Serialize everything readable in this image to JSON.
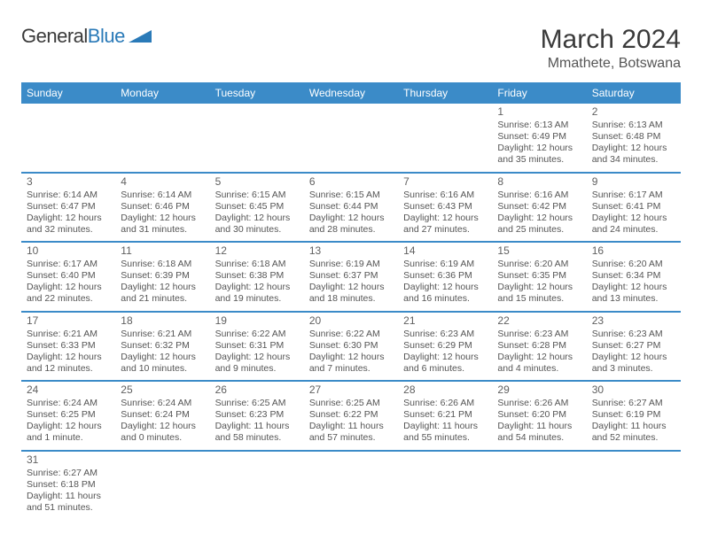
{
  "logo": {
    "text1": "General",
    "text2": "Blue"
  },
  "title": "March 2024",
  "location": "Mmathete, Botswana",
  "colors": {
    "header_bg": "#3b8bc8",
    "header_text": "#ffffff",
    "row_border": "#3b8bc8",
    "text": "#555555",
    "daynum": "#606060",
    "logo_blue": "#2a7ab8",
    "page_bg": "#ffffff"
  },
  "daynames": [
    "Sunday",
    "Monday",
    "Tuesday",
    "Wednesday",
    "Thursday",
    "Friday",
    "Saturday"
  ],
  "weeks": [
    [
      null,
      null,
      null,
      null,
      null,
      {
        "n": "1",
        "sr": "Sunrise: 6:13 AM",
        "ss": "Sunset: 6:49 PM",
        "dl": "Daylight: 12 hours and 35 minutes."
      },
      {
        "n": "2",
        "sr": "Sunrise: 6:13 AM",
        "ss": "Sunset: 6:48 PM",
        "dl": "Daylight: 12 hours and 34 minutes."
      }
    ],
    [
      {
        "n": "3",
        "sr": "Sunrise: 6:14 AM",
        "ss": "Sunset: 6:47 PM",
        "dl": "Daylight: 12 hours and 32 minutes."
      },
      {
        "n": "4",
        "sr": "Sunrise: 6:14 AM",
        "ss": "Sunset: 6:46 PM",
        "dl": "Daylight: 12 hours and 31 minutes."
      },
      {
        "n": "5",
        "sr": "Sunrise: 6:15 AM",
        "ss": "Sunset: 6:45 PM",
        "dl": "Daylight: 12 hours and 30 minutes."
      },
      {
        "n": "6",
        "sr": "Sunrise: 6:15 AM",
        "ss": "Sunset: 6:44 PM",
        "dl": "Daylight: 12 hours and 28 minutes."
      },
      {
        "n": "7",
        "sr": "Sunrise: 6:16 AM",
        "ss": "Sunset: 6:43 PM",
        "dl": "Daylight: 12 hours and 27 minutes."
      },
      {
        "n": "8",
        "sr": "Sunrise: 6:16 AM",
        "ss": "Sunset: 6:42 PM",
        "dl": "Daylight: 12 hours and 25 minutes."
      },
      {
        "n": "9",
        "sr": "Sunrise: 6:17 AM",
        "ss": "Sunset: 6:41 PM",
        "dl": "Daylight: 12 hours and 24 minutes."
      }
    ],
    [
      {
        "n": "10",
        "sr": "Sunrise: 6:17 AM",
        "ss": "Sunset: 6:40 PM",
        "dl": "Daylight: 12 hours and 22 minutes."
      },
      {
        "n": "11",
        "sr": "Sunrise: 6:18 AM",
        "ss": "Sunset: 6:39 PM",
        "dl": "Daylight: 12 hours and 21 minutes."
      },
      {
        "n": "12",
        "sr": "Sunrise: 6:18 AM",
        "ss": "Sunset: 6:38 PM",
        "dl": "Daylight: 12 hours and 19 minutes."
      },
      {
        "n": "13",
        "sr": "Sunrise: 6:19 AM",
        "ss": "Sunset: 6:37 PM",
        "dl": "Daylight: 12 hours and 18 minutes."
      },
      {
        "n": "14",
        "sr": "Sunrise: 6:19 AM",
        "ss": "Sunset: 6:36 PM",
        "dl": "Daylight: 12 hours and 16 minutes."
      },
      {
        "n": "15",
        "sr": "Sunrise: 6:20 AM",
        "ss": "Sunset: 6:35 PM",
        "dl": "Daylight: 12 hours and 15 minutes."
      },
      {
        "n": "16",
        "sr": "Sunrise: 6:20 AM",
        "ss": "Sunset: 6:34 PM",
        "dl": "Daylight: 12 hours and 13 minutes."
      }
    ],
    [
      {
        "n": "17",
        "sr": "Sunrise: 6:21 AM",
        "ss": "Sunset: 6:33 PM",
        "dl": "Daylight: 12 hours and 12 minutes."
      },
      {
        "n": "18",
        "sr": "Sunrise: 6:21 AM",
        "ss": "Sunset: 6:32 PM",
        "dl": "Daylight: 12 hours and 10 minutes."
      },
      {
        "n": "19",
        "sr": "Sunrise: 6:22 AM",
        "ss": "Sunset: 6:31 PM",
        "dl": "Daylight: 12 hours and 9 minutes."
      },
      {
        "n": "20",
        "sr": "Sunrise: 6:22 AM",
        "ss": "Sunset: 6:30 PM",
        "dl": "Daylight: 12 hours and 7 minutes."
      },
      {
        "n": "21",
        "sr": "Sunrise: 6:23 AM",
        "ss": "Sunset: 6:29 PM",
        "dl": "Daylight: 12 hours and 6 minutes."
      },
      {
        "n": "22",
        "sr": "Sunrise: 6:23 AM",
        "ss": "Sunset: 6:28 PM",
        "dl": "Daylight: 12 hours and 4 minutes."
      },
      {
        "n": "23",
        "sr": "Sunrise: 6:23 AM",
        "ss": "Sunset: 6:27 PM",
        "dl": "Daylight: 12 hours and 3 minutes."
      }
    ],
    [
      {
        "n": "24",
        "sr": "Sunrise: 6:24 AM",
        "ss": "Sunset: 6:25 PM",
        "dl": "Daylight: 12 hours and 1 minute."
      },
      {
        "n": "25",
        "sr": "Sunrise: 6:24 AM",
        "ss": "Sunset: 6:24 PM",
        "dl": "Daylight: 12 hours and 0 minutes."
      },
      {
        "n": "26",
        "sr": "Sunrise: 6:25 AM",
        "ss": "Sunset: 6:23 PM",
        "dl": "Daylight: 11 hours and 58 minutes."
      },
      {
        "n": "27",
        "sr": "Sunrise: 6:25 AM",
        "ss": "Sunset: 6:22 PM",
        "dl": "Daylight: 11 hours and 57 minutes."
      },
      {
        "n": "28",
        "sr": "Sunrise: 6:26 AM",
        "ss": "Sunset: 6:21 PM",
        "dl": "Daylight: 11 hours and 55 minutes."
      },
      {
        "n": "29",
        "sr": "Sunrise: 6:26 AM",
        "ss": "Sunset: 6:20 PM",
        "dl": "Daylight: 11 hours and 54 minutes."
      },
      {
        "n": "30",
        "sr": "Sunrise: 6:27 AM",
        "ss": "Sunset: 6:19 PM",
        "dl": "Daylight: 11 hours and 52 minutes."
      }
    ],
    [
      {
        "n": "31",
        "sr": "Sunrise: 6:27 AM",
        "ss": "Sunset: 6:18 PM",
        "dl": "Daylight: 11 hours and 51 minutes."
      },
      null,
      null,
      null,
      null,
      null,
      null
    ]
  ]
}
